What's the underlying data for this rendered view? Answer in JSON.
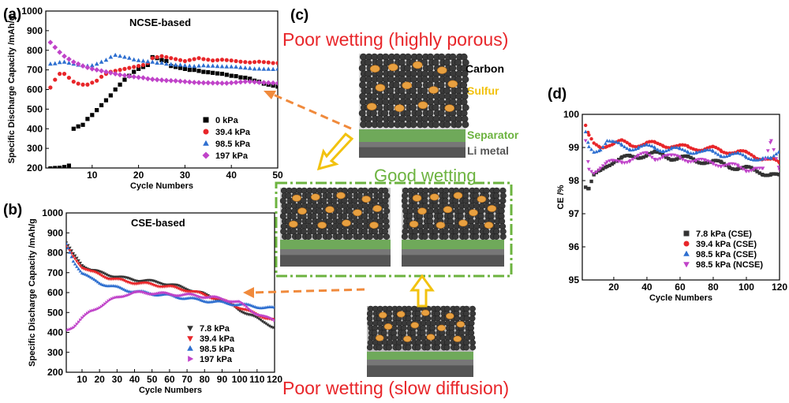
{
  "chart_data": [
    {
      "panel": "(a)",
      "type": "scatter",
      "title": "NCSE-based",
      "xlabel": "Cycle Numbers",
      "ylabel": "Specific Discharge Capacity /mAh/g",
      "xlim": [
        0,
        50
      ],
      "ylim": [
        200,
        1000
      ],
      "xticks": [
        10,
        20,
        30,
        40,
        50
      ],
      "yticks": [
        200,
        300,
        400,
        500,
        600,
        700,
        800,
        900,
        1000
      ],
      "series": [
        {
          "name": "0 kPa",
          "color": "#000000",
          "marker": "square",
          "x": [
            1,
            2,
            3,
            4,
            5,
            6,
            7,
            8,
            9,
            10,
            11,
            12,
            13,
            14,
            15,
            16,
            17,
            18,
            19,
            20,
            21,
            22,
            23,
            24,
            25,
            26,
            27,
            28,
            29,
            30,
            31,
            32,
            33,
            34,
            35,
            36,
            37,
            38,
            39,
            40,
            41,
            42,
            43,
            44,
            45,
            46,
            47,
            48,
            49,
            50
          ],
          "y": [
            198,
            200,
            201,
            205,
            212,
            400,
            412,
            420,
            450,
            470,
            495,
            520,
            545,
            570,
            600,
            625,
            650,
            670,
            690,
            705,
            715,
            725,
            765,
            760,
            750,
            745,
            720,
            715,
            710,
            705,
            700,
            700,
            695,
            690,
            688,
            685,
            682,
            680,
            675,
            670,
            668,
            662,
            660,
            655,
            645,
            640,
            630,
            625,
            620,
            615
          ]
        },
        {
          "name": "39.4 kPa",
          "color": "#e8262a",
          "marker": "circle",
          "x": [
            1,
            2,
            3,
            4,
            5,
            6,
            7,
            8,
            9,
            10,
            11,
            12,
            13,
            14,
            15,
            16,
            17,
            18,
            19,
            20,
            21,
            22,
            23,
            24,
            25,
            26,
            27,
            28,
            29,
            30,
            31,
            32,
            33,
            34,
            35,
            36,
            37,
            38,
            39,
            40,
            41,
            42,
            43,
            44,
            45,
            46,
            47,
            48,
            49,
            50
          ],
          "y": [
            610,
            650,
            680,
            680,
            660,
            640,
            630,
            625,
            625,
            635,
            645,
            665,
            680,
            690,
            695,
            700,
            705,
            710,
            715,
            720,
            725,
            735,
            760,
            765,
            770,
            765,
            760,
            755,
            750,
            745,
            750,
            755,
            760,
            755,
            752,
            748,
            750,
            752,
            750,
            748,
            745,
            742,
            740,
            738,
            740,
            742,
            740,
            738,
            735,
            735
          ]
        },
        {
          "name": "98.5 kPa",
          "color": "#2e6fd0",
          "marker": "triangle",
          "x": [
            1,
            2,
            3,
            4,
            5,
            6,
            7,
            8,
            9,
            10,
            11,
            12,
            13,
            14,
            15,
            16,
            17,
            18,
            19,
            20,
            21,
            22,
            23,
            24,
            25,
            26,
            27,
            28,
            29,
            30,
            31,
            32,
            33,
            34,
            35,
            36,
            37,
            38,
            39,
            40,
            41,
            42,
            43,
            44,
            45,
            46,
            47,
            48,
            49,
            50
          ],
          "y": [
            730,
            732,
            738,
            740,
            735,
            730,
            725,
            722,
            720,
            722,
            730,
            740,
            750,
            765,
            775,
            770,
            765,
            760,
            752,
            748,
            745,
            742,
            740,
            735,
            735,
            730,
            728,
            725,
            725,
            722,
            720,
            718,
            720,
            722,
            720,
            720,
            718,
            717,
            716,
            716,
            715,
            712,
            710,
            708,
            705,
            705,
            704,
            704,
            703,
            705
          ]
        },
        {
          "name": "197 kPa",
          "color": "#c043c9",
          "marker": "diamond",
          "x": [
            1,
            2,
            3,
            4,
            5,
            6,
            7,
            8,
            9,
            10,
            11,
            12,
            13,
            14,
            15,
            16,
            17,
            18,
            19,
            20,
            21,
            22,
            23,
            24,
            25,
            26,
            27,
            28,
            29,
            30,
            31,
            32,
            33,
            34,
            35,
            36,
            37,
            38,
            39,
            40,
            41,
            42,
            43,
            44,
            45,
            46,
            47,
            48,
            49,
            50
          ],
          "y": [
            840,
            815,
            790,
            770,
            755,
            740,
            730,
            720,
            712,
            705,
            700,
            695,
            690,
            685,
            680,
            675,
            672,
            668,
            665,
            662,
            660,
            655,
            652,
            650,
            648,
            646,
            645,
            644,
            642,
            640,
            638,
            636,
            635,
            634,
            634,
            633,
            633,
            632,
            632,
            634,
            636,
            638,
            640,
            640,
            638,
            636,
            635,
            634,
            633,
            632
          ]
        }
      ],
      "legend_position": "bottom-right"
    },
    {
      "panel": "(b)",
      "type": "scatter",
      "title": "CSE-based",
      "xlabel": "Cycle Numbers",
      "ylabel": "Specific Discharge Capacity /mAh/g",
      "xlim": [
        1,
        120
      ],
      "ylim": [
        200,
        1000
      ],
      "xticks": [
        10,
        20,
        30,
        40,
        50,
        60,
        70,
        80,
        90,
        100,
        110,
        120
      ],
      "yticks": [
        200,
        300,
        400,
        500,
        600,
        700,
        800,
        900,
        1000
      ],
      "series": [
        {
          "name": "7.8 kPa",
          "color": "#333333",
          "marker": "tri-down",
          "x": [
            1,
            5,
            10,
            15,
            20,
            25,
            30,
            35,
            40,
            45,
            50,
            55,
            60,
            65,
            70,
            75,
            80,
            85,
            90,
            95,
            100,
            105,
            110,
            115,
            120
          ],
          "y": [
            850,
            790,
            740,
            715,
            700,
            690,
            680,
            670,
            665,
            660,
            655,
            650,
            640,
            630,
            620,
            605,
            590,
            575,
            560,
            540,
            515,
            490,
            470,
            450,
            420
          ]
        },
        {
          "name": "39.4 kPa",
          "color": "#e8262a",
          "marker": "tri-down",
          "x": [
            1,
            5,
            10,
            15,
            20,
            25,
            30,
            35,
            40,
            45,
            50,
            55,
            60,
            65,
            70,
            75,
            80,
            85,
            90,
            95,
            100,
            105,
            110,
            115,
            120
          ],
          "y": [
            830,
            780,
            730,
            705,
            690,
            675,
            665,
            655,
            650,
            645,
            640,
            635,
            628,
            620,
            612,
            600,
            588,
            575,
            560,
            545,
            525,
            505,
            490,
            475,
            460
          ]
        },
        {
          "name": "98.5 kPa",
          "color": "#2e6fd0",
          "marker": "triangle",
          "x": [
            1,
            5,
            10,
            15,
            20,
            25,
            30,
            35,
            40,
            45,
            50,
            55,
            60,
            65,
            70,
            75,
            80,
            85,
            90,
            95,
            100,
            105,
            110,
            115,
            120
          ],
          "y": [
            840,
            760,
            700,
            670,
            650,
            635,
            625,
            615,
            605,
            600,
            595,
            590,
            585,
            578,
            572,
            565,
            560,
            555,
            550,
            545,
            540,
            535,
            530,
            525,
            520
          ]
        },
        {
          "name": "197 kPa",
          "color": "#c043c9",
          "marker": "tri-right",
          "x": [
            1,
            5,
            10,
            15,
            20,
            25,
            30,
            35,
            40,
            45,
            50,
            55,
            60,
            65,
            70,
            75,
            80,
            85,
            90,
            95,
            100,
            105,
            110,
            115,
            120
          ],
          "y": [
            410,
            430,
            470,
            505,
            530,
            555,
            575,
            590,
            598,
            600,
            598,
            595,
            592,
            590,
            588,
            585,
            580,
            575,
            568,
            560,
            550,
            520,
            495,
            475,
            460
          ]
        }
      ],
      "legend_position": "bottom-right"
    },
    {
      "panel": "(d)",
      "type": "scatter",
      "title": "",
      "xlabel": "Cycle Numbers",
      "ylabel": "CE /%",
      "xlim": [
        1,
        120
      ],
      "ylim": [
        95,
        100
      ],
      "xticks": [
        20,
        40,
        60,
        80,
        100,
        120
      ],
      "yticks": [
        95,
        96,
        97,
        98,
        99,
        100
      ],
      "series": [
        {
          "name": "7.8 kPa (CSE)",
          "color": "#333333",
          "marker": "square",
          "x": [
            3,
            5,
            8,
            12,
            16,
            20,
            25,
            30,
            35,
            40,
            45,
            50,
            55,
            60,
            65,
            70,
            75,
            80,
            85,
            90,
            95,
            100,
            105,
            110,
            115,
            120
          ],
          "y": [
            97.8,
            97.7,
            98.1,
            98.3,
            98.5,
            98.6,
            98.65,
            98.7,
            98.75,
            98.8,
            98.8,
            98.75,
            98.7,
            98.7,
            98.65,
            98.6,
            98.6,
            98.55,
            98.5,
            98.45,
            98.4,
            98.35,
            98.3,
            98.25,
            98.2,
            98.1
          ]
        },
        {
          "name": "39.4 kPa (CSE)",
          "color": "#e8262a",
          "marker": "circle",
          "x": [
            3,
            5,
            8,
            12,
            16,
            20,
            25,
            30,
            35,
            40,
            45,
            50,
            55,
            60,
            65,
            70,
            75,
            80,
            85,
            90,
            95,
            100,
            105,
            110,
            115,
            120
          ],
          "y": [
            99.6,
            99.3,
            99.1,
            99.05,
            99.1,
            99.1,
            99.15,
            99.1,
            99.1,
            99.1,
            99.1,
            99.1,
            99.05,
            99.0,
            99.0,
            99.0,
            98.95,
            98.95,
            98.9,
            98.9,
            98.85,
            98.8,
            98.75,
            98.7,
            98.6,
            98.5
          ]
        },
        {
          "name": "98.5 kPa (CSE)",
          "color": "#2e6fd0",
          "marker": "triangle",
          "x": [
            3,
            5,
            8,
            12,
            16,
            20,
            25,
            30,
            35,
            40,
            45,
            50,
            55,
            60,
            65,
            70,
            75,
            80,
            85,
            90,
            95,
            100,
            105,
            110,
            115,
            120
          ],
          "y": [
            99.4,
            99.0,
            98.9,
            99.0,
            99.2,
            99.1,
            99.05,
            99.0,
            99.0,
            99.0,
            99.0,
            98.95,
            98.95,
            98.9,
            98.9,
            98.9,
            98.85,
            98.85,
            98.8,
            98.8,
            98.75,
            98.7,
            98.7,
            98.65,
            98.6,
            98.9
          ]
        },
        {
          "name": "98.5 kPa (NCSE)",
          "color": "#c043c9",
          "marker": "tri-down",
          "x": [
            3,
            5,
            8,
            12,
            16,
            20,
            25,
            30,
            35,
            40,
            45,
            50,
            55,
            60,
            65,
            70,
            75,
            80,
            85,
            90,
            95,
            100,
            105,
            110,
            115,
            120
          ],
          "y": [
            99.2,
            98.4,
            98.3,
            98.4,
            98.5,
            98.55,
            98.6,
            98.65,
            98.7,
            98.8,
            98.7,
            98.75,
            98.7,
            98.7,
            98.65,
            98.6,
            98.55,
            98.55,
            98.5,
            98.45,
            98.4,
            98.35,
            98.4,
            98.3,
            99.2,
            98.4
          ]
        }
      ],
      "legend_position": "bottom-right"
    }
  ],
  "panel_c": {
    "label": "(c)",
    "title_top": "Poor wetting (highly porous)",
    "title_middle": "Good wetting",
    "title_bottom": "Poor wetting (slow diffusion)",
    "label_carbon": "Carbon",
    "label_sulfur": "Sulfur",
    "label_separator": "Separator",
    "label_li": "Li metal",
    "colors": {
      "red": "#e8262a",
      "green": "#6cb33f",
      "orange": "#f08a3c",
      "yellow": "#f2c20f",
      "carbon": "#3a3a3a",
      "sulfur": "#e8a040"
    }
  }
}
